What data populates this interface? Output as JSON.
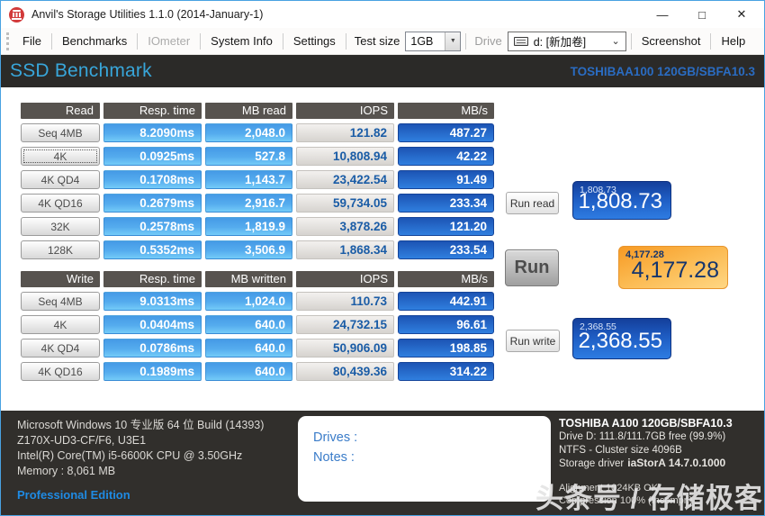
{
  "window": {
    "title": "Anvil's Storage Utilities 1.1.0 (2014-January-1)"
  },
  "icons": {
    "minimize": "—",
    "maximize": "□",
    "close": "✕",
    "dropdown_arrow": "▼",
    "chevron_down": "⌄"
  },
  "menu": {
    "file": "File",
    "benchmarks": "Benchmarks",
    "iometer": "IOmeter",
    "system_info": "System Info",
    "settings": "Settings",
    "test_size_label": "Test size",
    "test_size_value": "1GB",
    "drive_label": "Drive",
    "drive_value": "d: [新加卷]",
    "screenshot": "Screenshot",
    "help": "Help"
  },
  "header": {
    "title": "SSD Benchmark",
    "device": "TOSHIBAA100 120GB/SBFA10.3"
  },
  "read_table": {
    "headers": [
      "Read",
      "Resp. time",
      "MB read",
      "IOPS",
      "MB/s"
    ],
    "rows": [
      {
        "label": "Seq 4MB",
        "resp": "8.2090ms",
        "amount": "2,048.0",
        "iops": "121.82",
        "mbs": "487.27"
      },
      {
        "label": "4K",
        "resp": "0.0925ms",
        "amount": "527.8",
        "iops": "10,808.94",
        "mbs": "42.22"
      },
      {
        "label": "4K QD4",
        "resp": "0.1708ms",
        "amount": "1,143.7",
        "iops": "23,422.54",
        "mbs": "91.49"
      },
      {
        "label": "4K QD16",
        "resp": "0.2679ms",
        "amount": "2,916.7",
        "iops": "59,734.05",
        "mbs": "233.34"
      },
      {
        "label": "32K",
        "resp": "0.2578ms",
        "amount": "1,819.9",
        "iops": "3,878.26",
        "mbs": "121.20"
      },
      {
        "label": "128K",
        "resp": "0.5352ms",
        "amount": "3,506.9",
        "iops": "1,868.34",
        "mbs": "233.54"
      }
    ]
  },
  "write_table": {
    "headers": [
      "Write",
      "Resp. time",
      "MB written",
      "IOPS",
      "MB/s"
    ],
    "rows": [
      {
        "label": "Seq 4MB",
        "resp": "9.0313ms",
        "amount": "1,024.0",
        "iops": "110.73",
        "mbs": "442.91"
      },
      {
        "label": "4K",
        "resp": "0.0404ms",
        "amount": "640.0",
        "iops": "24,732.15",
        "mbs": "96.61"
      },
      {
        "label": "4K QD4",
        "resp": "0.0786ms",
        "amount": "640.0",
        "iops": "50,906.09",
        "mbs": "198.85"
      },
      {
        "label": "4K QD16",
        "resp": "0.1989ms",
        "amount": "640.0",
        "iops": "80,439.36",
        "mbs": "314.22"
      }
    ]
  },
  "actions": {
    "run_read_label": "Run read",
    "run_label": "Run",
    "run_write_label": "Run write",
    "read_score_small": "1,808.73",
    "read_score": "1,808.73",
    "total_score_small": "4,177.28",
    "total_score": "4,177.28",
    "write_score_small": "2,368.55",
    "write_score": "2,368.55"
  },
  "footer": {
    "system_line1": "Microsoft Windows 10 专业版 64 位 Build (14393)",
    "system_line2": "Z170X-UD3-CF/F6, U3E1",
    "system_line3": "Intel(R) Core(TM) i5-6600K CPU @ 3.50GHz",
    "system_line4": "Memory : 8,061 MB",
    "edition": "Professional Edition",
    "drives_label": "Drives :",
    "notes_label": "Notes :",
    "device_title": "TOSHIBA A100 120GB/SBFA10.3",
    "drive_info": "Drive D: 111.8/111.7GB free (99.9%)",
    "fs_info": "NTFS - Cluster size 4096B",
    "driver_label": "Storage driver",
    "driver_value": "iaStorA 14.7.0.1000",
    "alignment": "Alignment 1024KB OK",
    "compression": "Compression 100% (Incompr.)"
  },
  "watermark": "头条号 / 存储极客",
  "colors": {
    "accent_blue": "#2e7ce2",
    "cell_blue": "#55acee",
    "cell_dark_blue": "#1c54b4",
    "score_orange": "#f79a24",
    "header_band_bg": "#2b2a28",
    "band_title_blue": "#38a6da",
    "footer_bg": "#312f2c",
    "edition_blue": "#1f8be4"
  }
}
